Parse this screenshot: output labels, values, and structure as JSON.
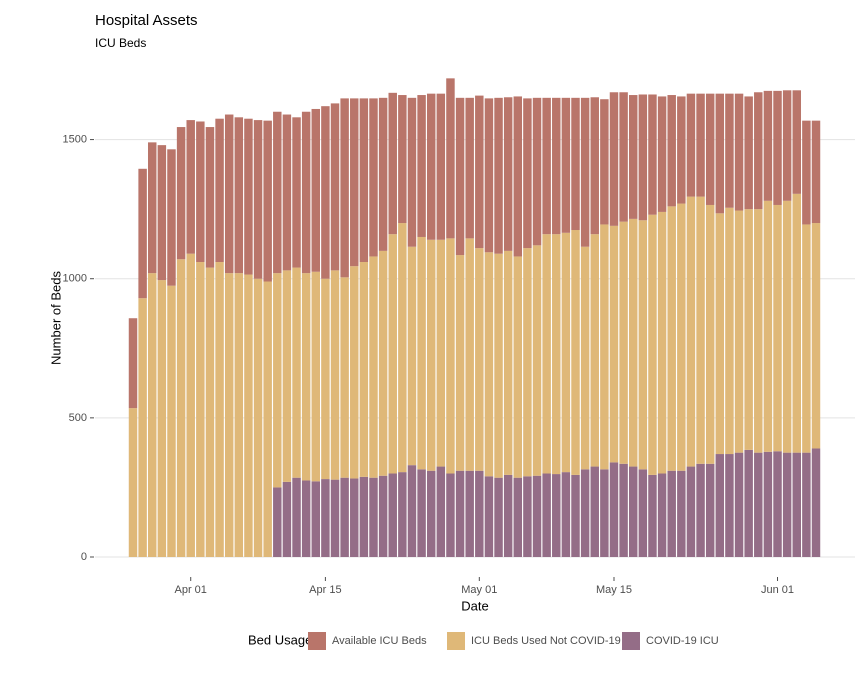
{
  "chart_data": {
    "type": "stacked_bar",
    "title": "Hospital Assets",
    "subtitle": "ICU Beds",
    "x_label": "Date",
    "y_label": "Number of Beds",
    "legend_title": "Bed Usage",
    "categories": [
      "Mar 26",
      "Mar 27",
      "Mar 28",
      "Mar 29",
      "Mar 30",
      "Mar 31",
      "Apr 01",
      "Apr 02",
      "Apr 03",
      "Apr 04",
      "Apr 05",
      "Apr 06",
      "Apr 07",
      "Apr 08",
      "Apr 09",
      "Apr 10",
      "Apr 11",
      "Apr 12",
      "Apr 13",
      "Apr 14",
      "Apr 15",
      "Apr 16",
      "Apr 17",
      "Apr 18",
      "Apr 19",
      "Apr 20",
      "Apr 21",
      "Apr 22",
      "Apr 23",
      "Apr 24",
      "Apr 25",
      "Apr 26",
      "Apr 27",
      "Apr 28",
      "Apr 29",
      "Apr 30",
      "May 01",
      "May 02",
      "May 03",
      "May 04",
      "May 05",
      "May 06",
      "May 07",
      "May 08",
      "May 09",
      "May 10",
      "May 11",
      "May 12",
      "May 13",
      "May 14",
      "May 15",
      "May 16",
      "May 17",
      "May 18",
      "May 19",
      "May 20",
      "May 21",
      "May 22",
      "May 23",
      "May 24",
      "May 25",
      "May 26",
      "May 27",
      "May 28",
      "May 29",
      "May 30",
      "May 31",
      "Jun 01",
      "Jun 02",
      "Jun 03",
      "Jun 04",
      "Jun 05"
    ],
    "xticks": [
      "Apr 01",
      "Apr 15",
      "May 01",
      "May 15",
      "Jun 01"
    ],
    "ylim": [
      0,
      1750
    ],
    "yticks": [
      0,
      500,
      1000,
      1500
    ],
    "grid": true,
    "series": [
      {
        "name": "COVID-19 ICU",
        "color": "#946d87",
        "values": [
          0,
          0,
          0,
          0,
          0,
          0,
          0,
          0,
          0,
          0,
          0,
          0,
          0,
          0,
          0,
          250,
          270,
          285,
          275,
          272,
          280,
          278,
          285,
          282,
          288,
          285,
          292,
          300,
          305,
          330,
          315,
          310,
          325,
          300,
          310,
          310,
          310,
          290,
          285,
          295,
          285,
          290,
          292,
          300,
          298,
          305,
          295,
          315,
          325,
          315,
          340,
          335,
          325,
          315,
          295,
          300,
          310,
          310,
          325,
          335,
          335,
          370,
          370,
          375,
          385,
          375,
          378,
          380,
          375,
          375,
          375,
          390
        ]
      },
      {
        "name": "ICU Beds Used Not COVID-19",
        "color": "#dfb878",
        "values": [
          535,
          930,
          1020,
          995,
          975,
          1070,
          1090,
          1060,
          1040,
          1060,
          1020,
          1020,
          1015,
          1000,
          990,
          770,
          760,
          755,
          745,
          753,
          720,
          752,
          720,
          763,
          772,
          795,
          808,
          860,
          895,
          785,
          835,
          830,
          815,
          845,
          775,
          835,
          800,
          805,
          805,
          805,
          795,
          820,
          828,
          860,
          862,
          860,
          880,
          800,
          835,
          880,
          850,
          870,
          890,
          895,
          935,
          940,
          950,
          960,
          970,
          960,
          930,
          865,
          885,
          870,
          865,
          875,
          902,
          885,
          905,
          930,
          820,
          810
        ]
      },
      {
        "name": "Available ICU Beds",
        "color": "#b9756a",
        "values": [
          323,
          465,
          470,
          485,
          490,
          475,
          480,
          505,
          505,
          515,
          570,
          560,
          560,
          570,
          578,
          580,
          560,
          540,
          580,
          585,
          620,
          600,
          643,
          603,
          588,
          568,
          550,
          508,
          460,
          535,
          510,
          525,
          525,
          575,
          565,
          505,
          548,
          553,
          560,
          552,
          575,
          538,
          530,
          490,
          490,
          485,
          475,
          535,
          492,
          450,
          480,
          465,
          445,
          452,
          432,
          415,
          400,
          385,
          370,
          370,
          400,
          430,
          410,
          420,
          405,
          420,
          395,
          410,
          397,
          372,
          373,
          368
        ]
      }
    ]
  }
}
